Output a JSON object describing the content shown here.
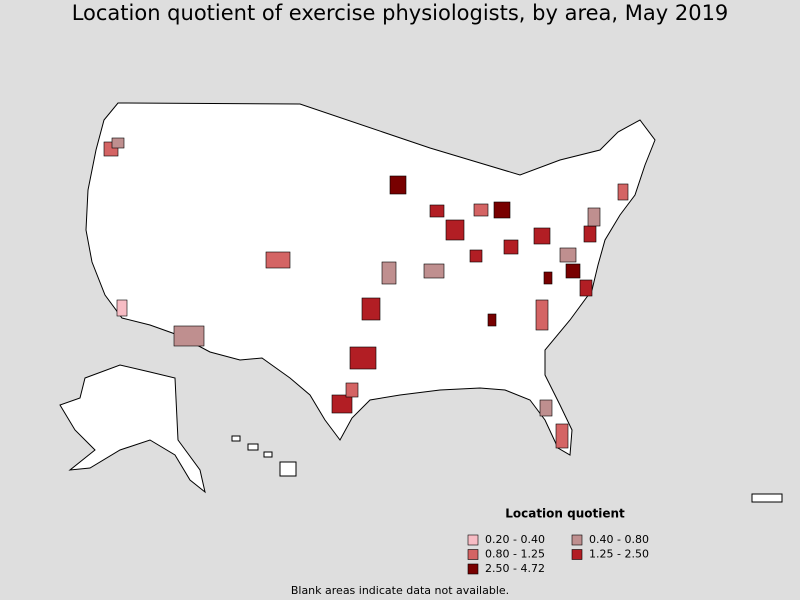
{
  "title": "Location quotient of exercise physiologists, by area, May 2019",
  "legend": {
    "title": "Location quotient",
    "items": [
      {
        "label": "0.20 - 0.40",
        "color": "#f7bcc4"
      },
      {
        "label": "0.40 - 0.80",
        "color": "#bf8f8f"
      },
      {
        "label": "0.80 - 1.25",
        "color": "#d46464"
      },
      {
        "label": "1.25 - 2.50",
        "color": "#b21e24"
      },
      {
        "label": "2.50 - 4.72",
        "color": "#780000"
      }
    ]
  },
  "note": "Blank areas indicate data not available."
}
